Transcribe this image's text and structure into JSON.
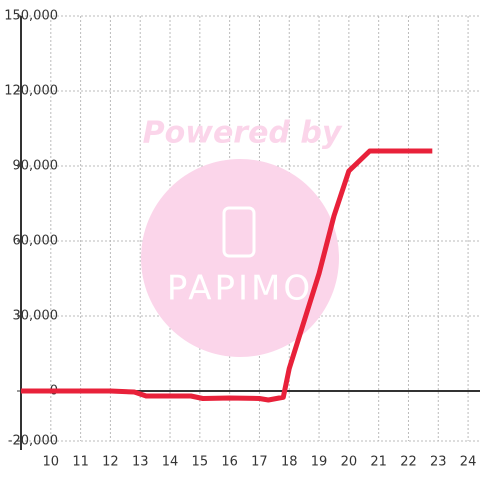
{
  "chart_data": {
    "type": "line",
    "watermark": {
      "text": "Powered by",
      "logo": "PAPIMO"
    },
    "x": [
      9,
      10,
      11,
      12,
      12.8,
      13.2,
      14,
      14.7,
      15.1,
      16,
      17,
      17.3,
      17.8,
      18,
      19,
      19.5,
      20,
      20.7,
      22.8
    ],
    "series": [
      {
        "color": "#e8213a",
        "values": [
          0,
          0,
          0,
          0,
          -400,
          -2000,
          -2000,
          -2000,
          -3000,
          -2800,
          -3000,
          -3600,
          -2500,
          9000,
          47000,
          70000,
          88000,
          96000,
          96000
        ]
      }
    ],
    "xlim": [
      9,
      24.4
    ],
    "xticks": [
      10,
      11,
      12,
      13,
      14,
      15,
      16,
      17,
      18,
      19,
      20,
      21,
      22,
      23,
      24
    ],
    "ylim": [
      -20000,
      150000
    ],
    "yticks": [
      {
        "value": -20000,
        "label": "-20,000"
      },
      0,
      {
        "value": 30000,
        "label": "30,000"
      },
      {
        "value": 60000,
        "label": "60,000"
      },
      {
        "value": 90000,
        "label": "90,000"
      },
      {
        "value": 120000,
        "label": "120,000"
      },
      {
        "value": 150000,
        "label": "150,000"
      }
    ],
    "grid": true
  }
}
